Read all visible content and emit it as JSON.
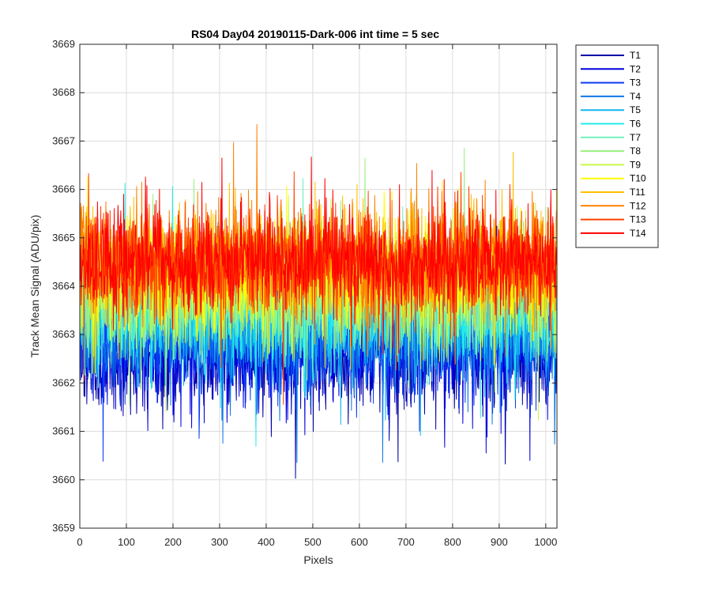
{
  "chart_data": {
    "type": "line",
    "title": "RS04 Day04 20190115-Dark-006 int time = 5 sec",
    "xlabel": "Pixels",
    "ylabel": "Track Mean Signal (ADU/pix)",
    "xlim": [
      0,
      1024
    ],
    "ylim": [
      3659,
      3669
    ],
    "xticks": [
      "0",
      "100",
      "200",
      "300",
      "400",
      "500",
      "600",
      "700",
      "800",
      "900",
      "1000"
    ],
    "yticks": [
      "3659",
      "3660",
      "3661",
      "3662",
      "3663",
      "3664",
      "3665",
      "3666",
      "3667",
      "3668",
      "3669"
    ],
    "grid": true,
    "legend_position": "outside-top-right",
    "x_points": 1024,
    "series": [
      {
        "name": "T1",
        "color": "#0000a8",
        "mean": 3662.6,
        "noise": 0.55,
        "seed": 11
      },
      {
        "name": "T2",
        "color": "#0000dc",
        "mean": 3662.7,
        "noise": 0.55,
        "seed": 23
      },
      {
        "name": "T3",
        "color": "#0a3cf5",
        "mean": 3662.9,
        "noise": 0.55,
        "seed": 37
      },
      {
        "name": "T4",
        "color": "#0b78e8",
        "mean": 3663.1,
        "noise": 0.55,
        "seed": 41
      },
      {
        "name": "T5",
        "color": "#10b4f0",
        "mean": 3663.3,
        "noise": 0.55,
        "seed": 53
      },
      {
        "name": "T6",
        "color": "#25eaea",
        "mean": 3663.5,
        "noise": 0.55,
        "seed": 67
      },
      {
        "name": "T7",
        "color": "#70f0c0",
        "mean": 3663.7,
        "noise": 0.55,
        "seed": 71
      },
      {
        "name": "T8",
        "color": "#98f080",
        "mean": 3663.9,
        "noise": 0.55,
        "seed": 83
      },
      {
        "name": "T9",
        "color": "#c8f848",
        "mean": 3664.1,
        "noise": 0.55,
        "seed": 97
      },
      {
        "name": "T10",
        "color": "#ffff00",
        "mean": 3664.3,
        "noise": 0.55,
        "seed": 101
      },
      {
        "name": "T11",
        "color": "#ffc000",
        "mean": 3664.4,
        "noise": 0.55,
        "seed": 113
      },
      {
        "name": "T12",
        "color": "#ff8000",
        "mean": 3664.5,
        "noise": 0.55,
        "seed": 127
      },
      {
        "name": "T13",
        "color": "#ff4000",
        "mean": 3664.5,
        "noise": 0.55,
        "seed": 131
      },
      {
        "name": "T14",
        "color": "#ff0000",
        "mean": 3664.5,
        "noise": 0.55,
        "seed": 149
      }
    ]
  }
}
